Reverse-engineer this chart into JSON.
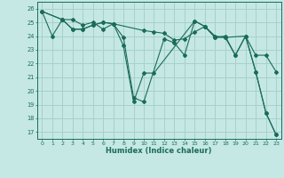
{
  "xlabel": "Humidex (Indice chaleur)",
  "xlim": [
    -0.5,
    23.5
  ],
  "ylim": [
    16.5,
    26.5
  ],
  "yticks": [
    17,
    18,
    19,
    20,
    21,
    22,
    23,
    24,
    25,
    26
  ],
  "xticks": [
    0,
    1,
    2,
    3,
    4,
    5,
    6,
    7,
    8,
    9,
    10,
    11,
    12,
    13,
    14,
    15,
    16,
    17,
    18,
    19,
    20,
    21,
    22,
    23
  ],
  "bg_color": "#c5e8e5",
  "line_color": "#1a6b5a",
  "grid_color": "#a8d0cc",
  "line1_x": [
    0,
    1,
    2,
    3,
    4,
    5,
    6,
    7,
    8,
    9,
    10,
    11,
    15,
    16,
    17,
    18,
    19,
    20,
    21,
    22,
    23
  ],
  "line1_y": [
    25.8,
    24.0,
    25.2,
    25.2,
    24.8,
    25.0,
    24.5,
    24.9,
    23.3,
    19.2,
    21.3,
    21.3,
    25.1,
    24.7,
    24.0,
    23.9,
    22.6,
    24.0,
    21.4,
    18.4,
    16.8
  ],
  "line2_x": [
    0,
    2,
    3,
    4,
    5,
    6,
    7,
    8,
    9,
    10,
    12,
    13,
    14,
    15,
    16,
    17,
    18,
    20,
    21,
    22,
    23
  ],
  "line2_y": [
    25.8,
    25.2,
    24.5,
    24.5,
    24.8,
    25.0,
    24.9,
    23.9,
    19.5,
    19.2,
    23.8,
    23.5,
    22.6,
    25.1,
    24.7,
    23.9,
    23.9,
    24.0,
    21.4,
    18.4,
    16.8
  ],
  "line3_x": [
    0,
    2,
    3,
    4,
    5,
    6,
    7,
    10,
    11,
    12,
    13,
    14,
    15,
    16,
    17,
    18,
    19,
    20,
    21,
    22,
    23
  ],
  "line3_y": [
    25.8,
    25.2,
    24.5,
    24.5,
    24.8,
    25.0,
    24.9,
    24.4,
    24.3,
    24.2,
    23.7,
    23.8,
    24.3,
    24.7,
    23.9,
    24.0,
    22.6,
    24.0,
    22.6,
    22.6,
    21.4
  ]
}
